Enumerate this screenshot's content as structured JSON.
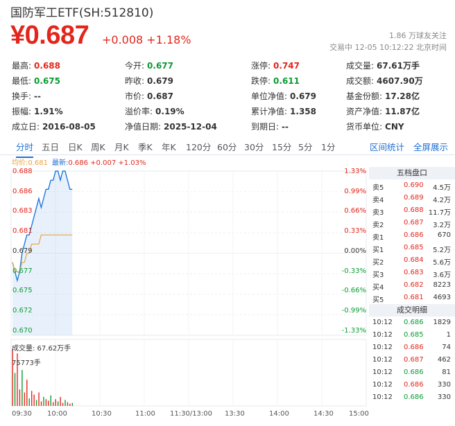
{
  "header": {
    "title": "国防军工ETF(SH:512810)",
    "price": "¥0.687",
    "change": "+0.008 +1.18%",
    "followers": "1.86 万球友关注",
    "trade_time": "交易中 12-05 10:12:22 北京时间"
  },
  "stats": [
    {
      "label": "最高:",
      "value": "0.688",
      "color": "up"
    },
    {
      "label": "今开:",
      "value": "0.677",
      "color": "down"
    },
    {
      "label": "涨停:",
      "value": "0.747",
      "color": "up"
    },
    {
      "label": "成交量:",
      "value": "67.61万手",
      "color": ""
    },
    {
      "label": "最低:",
      "value": "0.675",
      "color": "down"
    },
    {
      "label": "昨收:",
      "value": "0.679",
      "color": ""
    },
    {
      "label": "跌停:",
      "value": "0.611",
      "color": "down"
    },
    {
      "label": "成交额:",
      "value": "4607.90万",
      "color": ""
    },
    {
      "label": "换手:",
      "value": "--",
      "color": ""
    },
    {
      "label": "市价:",
      "value": "0.687",
      "color": ""
    },
    {
      "label": "单位净值:",
      "value": "0.679",
      "color": ""
    },
    {
      "label": "基金份额:",
      "value": "17.28亿",
      "color": ""
    },
    {
      "label": "振幅:",
      "value": "1.91%",
      "color": ""
    },
    {
      "label": "溢价率:",
      "value": "0.19%",
      "color": ""
    },
    {
      "label": "累计净值:",
      "value": "1.358",
      "color": ""
    },
    {
      "label": "资产净值:",
      "value": "11.87亿",
      "color": ""
    },
    {
      "label": "成立日:",
      "value": "2016-08-05",
      "color": ""
    },
    {
      "label": "净值日期:",
      "value": "2025-12-04",
      "color": ""
    },
    {
      "label": "到期日:",
      "value": "--",
      "color": ""
    },
    {
      "label": "货币单位:",
      "value": "CNY",
      "color": ""
    }
  ],
  "tabs": [
    "分时",
    "五日",
    "日K",
    "周K",
    "月K",
    "季K",
    "年K",
    "120分",
    "60分",
    "30分",
    "15分",
    "5分",
    "1分"
  ],
  "tab_links": [
    "区间统计",
    "全屏展示"
  ],
  "chart_info": {
    "avg": "均价:0.681",
    "latest_label": "最新:",
    "latest": "0.686 +0.007 +1.03%"
  },
  "volume": {
    "label": "成交量: 67.62万手",
    "max_label": "75773手"
  },
  "orderbook": {
    "title": "五档盘口",
    "rows": [
      {
        "side": "卖5",
        "price": "0.690",
        "vol": "4.5万",
        "color": "red"
      },
      {
        "side": "卖4",
        "price": "0.689",
        "vol": "4.2万",
        "color": "red"
      },
      {
        "side": "卖3",
        "price": "0.688",
        "vol": "11.7万",
        "color": "red"
      },
      {
        "side": "卖2",
        "price": "0.687",
        "vol": "3.2万",
        "color": "red"
      },
      {
        "side": "卖1",
        "price": "0.686",
        "vol": "670",
        "color": "red"
      },
      {
        "side": "买1",
        "price": "0.685",
        "vol": "5.2万",
        "color": "red"
      },
      {
        "side": "买2",
        "price": "0.684",
        "vol": "5.6万",
        "color": "red"
      },
      {
        "side": "买3",
        "price": "0.683",
        "vol": "3.6万",
        "color": "red"
      },
      {
        "side": "买4",
        "price": "0.682",
        "vol": "8223",
        "color": "red"
      },
      {
        "side": "买5",
        "price": "0.681",
        "vol": "4693",
        "color": "red"
      }
    ],
    "deals_title": "成交明细",
    "deals": [
      {
        "time": "10:12",
        "price": "0.686",
        "vol": "1829",
        "color": "green"
      },
      {
        "time": "10:12",
        "price": "0.685",
        "vol": "1",
        "color": "green"
      },
      {
        "time": "10:12",
        "price": "0.686",
        "vol": "74",
        "color": "red"
      },
      {
        "time": "10:12",
        "price": "0.687",
        "vol": "462",
        "color": "red"
      },
      {
        "time": "10:12",
        "price": "0.686",
        "vol": "81",
        "color": "green"
      },
      {
        "time": "10:12",
        "price": "0.686",
        "vol": "330",
        "color": "red"
      },
      {
        "time": "10:12",
        "price": "0.686",
        "vol": "330",
        "color": "green"
      }
    ]
  },
  "chart_data": {
    "type": "line",
    "y_left_ticks": [
      "0.688",
      "0.686",
      "0.683",
      "0.681",
      "0.679",
      "0.677",
      "0.675",
      "0.672",
      "0.670"
    ],
    "y_right_ticks": [
      "1.33%",
      "0.99%",
      "0.66%",
      "0.33%",
      "0.00%",
      "-0.33%",
      "-0.66%",
      "-0.99%",
      "-1.33%"
    ],
    "x_ticks": [
      "09:30",
      "10:00",
      "10:30",
      "11:00",
      "11:30/13:00",
      "13:30",
      "14:00",
      "14:30",
      "15:00"
    ],
    "ylim": [
      0.67,
      0.688
    ],
    "prev_close": 0.679,
    "series": [
      {
        "values": [
          0.678,
          0.677,
          0.676,
          0.677,
          0.679,
          0.68,
          0.681,
          0.681,
          0.682,
          0.683,
          0.684,
          0.685,
          0.684,
          0.685,
          0.686,
          0.686,
          0.687,
          0.687,
          0.688,
          0.688,
          0.687,
          0.688,
          0.688,
          0.687,
          0.686,
          0.686
        ]
      },
      {
        "values": [
          0.678,
          0.677,
          0.677,
          0.677,
          0.678,
          0.678,
          0.679,
          0.679,
          0.68,
          0.68,
          0.68,
          0.68,
          0.681,
          0.681,
          0.681,
          0.681,
          0.681,
          0.681,
          0.681,
          0.681,
          0.681,
          0.681,
          0.681,
          0.681,
          0.681,
          0.681
        ]
      }
    ],
    "volume": [
      75773,
      44000,
      70000,
      22000,
      48000,
      18000,
      35000,
      10000,
      20000,
      15000,
      8000,
      18000,
      6000,
      12000,
      9000,
      7000,
      14000,
      5000,
      9000,
      6000,
      12000,
      4000,
      8000,
      5000,
      3000,
      4000
    ]
  }
}
